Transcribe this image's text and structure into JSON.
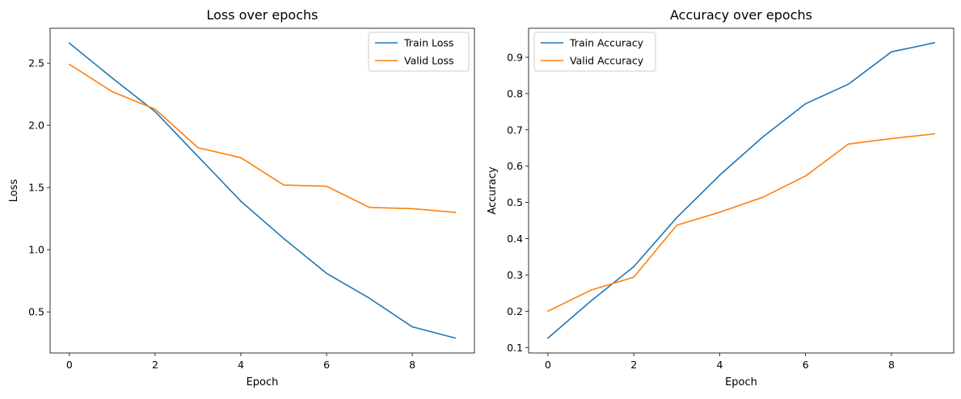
{
  "colors": {
    "series1": "#1f77b4",
    "series2": "#ff7f0e"
  },
  "chart_data": [
    {
      "type": "line",
      "title": "Loss over epochs",
      "xlabel": "Epoch",
      "ylabel": "Loss",
      "xlim": [
        -0.45,
        9.45
      ],
      "ylim": [
        0.17,
        2.78
      ],
      "xticks": [
        0,
        2,
        4,
        6,
        8
      ],
      "yticks": [
        0.5,
        1.0,
        1.5,
        2.0,
        2.5
      ],
      "xtick_labels": [
        "0",
        "2",
        "4",
        "6",
        "8"
      ],
      "ytick_labels": [
        "0.5",
        "1.0",
        "1.5",
        "2.0",
        "2.5"
      ],
      "legend_location": "upper right",
      "grid": false,
      "x": [
        0,
        1,
        2,
        3,
        4,
        5,
        6,
        7,
        8,
        9
      ],
      "series": [
        {
          "name": "Train Loss",
          "values": [
            2.66,
            2.38,
            2.11,
            1.75,
            1.39,
            1.09,
            0.81,
            0.61,
            0.38,
            0.29
          ]
        },
        {
          "name": "Valid Loss",
          "values": [
            2.49,
            2.27,
            2.13,
            1.82,
            1.74,
            1.52,
            1.51,
            1.34,
            1.33,
            1.3
          ]
        }
      ]
    },
    {
      "type": "line",
      "title": "Accuracy over epochs",
      "xlabel": "Epoch",
      "ylabel": "Accuracy",
      "xlim": [
        -0.45,
        9.45
      ],
      "ylim": [
        0.085,
        0.98
      ],
      "xticks": [
        0,
        2,
        4,
        6,
        8
      ],
      "yticks": [
        0.1,
        0.2,
        0.3,
        0.4,
        0.5,
        0.6,
        0.7,
        0.8,
        0.9
      ],
      "xtick_labels": [
        "0",
        "2",
        "4",
        "6",
        "8"
      ],
      "ytick_labels": [
        "0.1",
        "0.2",
        "0.3",
        "0.4",
        "0.5",
        "0.6",
        "0.7",
        "0.8",
        "0.9"
      ],
      "legend_location": "upper left",
      "grid": false,
      "x": [
        0,
        1,
        2,
        3,
        4,
        5,
        6,
        7,
        8,
        9
      ],
      "series": [
        {
          "name": "Train Accuracy",
          "values": [
            0.126,
            0.228,
            0.323,
            0.458,
            0.575,
            0.68,
            0.772,
            0.826,
            0.915,
            0.94
          ]
        },
        {
          "name": "Valid Accuracy",
          "values": [
            0.2,
            0.258,
            0.294,
            0.437,
            0.473,
            0.514,
            0.573,
            0.661,
            0.676,
            0.689
          ]
        }
      ]
    }
  ]
}
